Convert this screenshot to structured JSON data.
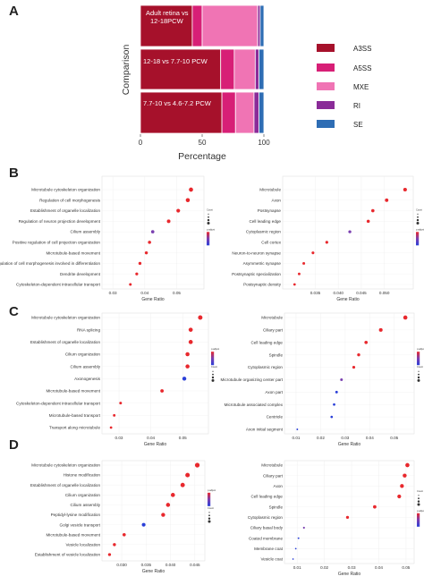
{
  "panel_letters": {
    "a": "A",
    "b": "B",
    "c": "C",
    "d": "D"
  },
  "legend_labels": [
    "A3SS",
    "A5SS",
    "MXE",
    "RI",
    "SE"
  ],
  "colors": {
    "A3SS": "#a6112b",
    "A5SS": "#d71f76",
    "MXE": "#f074b4",
    "RI": "#8a2b98",
    "SE": "#2e6db4",
    "dot_high": "#e8282d",
    "dot_mid": "#7a3fb0",
    "dot_low": "#2a3fd8",
    "grid": "#ececec",
    "frame": "#dddddd"
  },
  "chart_data": [
    {
      "panel": "A",
      "type": "bar",
      "orientation": "horizontal",
      "stacked": true,
      "categories": [
        "Adult retina vs 12-18PCW",
        "12-18 vs 7.7-10 PCW",
        "7.7-10 vs 4.6-7.2 PCW"
      ],
      "series": [
        {
          "name": "A3SS",
          "values": [
            42,
            65,
            66
          ]
        },
        {
          "name": "A5SS",
          "values": [
            8,
            11,
            11
          ]
        },
        {
          "name": "MXE",
          "values": [
            45,
            17,
            15
          ]
        },
        {
          "name": "RI",
          "values": [
            2,
            3,
            4
          ]
        },
        {
          "name": "SE",
          "values": [
            3,
            4,
            4
          ]
        }
      ],
      "xlabel": "Percentage",
      "ylabel": "Comparison",
      "xlim": [
        0,
        100
      ],
      "xticks": [
        "0",
        "50",
        "100"
      ],
      "legend": "right"
    },
    {
      "panel": "B-left",
      "type": "scatter",
      "categories": [
        "Microtubule cytoskeleton organization",
        "Regulation of cell morphogenesis",
        "Establishment of organelle localization",
        "Regulation of neuron projection development",
        "Cilium assembly",
        "Positive regulation of cell projection organization",
        "Microtubule-based movement",
        "Regulation of cell morphogenesis involved in differentiation",
        "Dendrite development",
        "Cytoskeleton-dependent intracellular transport"
      ],
      "x": [
        0.0545,
        0.0535,
        0.0505,
        0.0475,
        0.0425,
        0.0415,
        0.0405,
        0.0385,
        0.0375,
        0.0355
      ],
      "p_adjust": [
        0.05,
        0.05,
        0.05,
        0.05,
        0.5,
        0.05,
        0.05,
        0.05,
        0.05,
        0.05
      ],
      "count": [
        70,
        68,
        62,
        58,
        52,
        50,
        48,
        46,
        44,
        40
      ],
      "xticks": [
        "0.03",
        "0.04",
        "0.05"
      ],
      "xlim": [
        0.028,
        0.058
      ],
      "xlabel": "Gene Ratio",
      "legend_titles": [
        "Count",
        "p.adjust"
      ]
    },
    {
      "panel": "B-right",
      "type": "scatter",
      "categories": [
        "Microtubule",
        "Axon",
        "Postsynapse",
        "Cell leading edge",
        "Cytoplasmic region",
        "Cell cortex",
        "Neuron-to-neuron synapse",
        "Asymmetric synapse",
        "Postsynaptic specialization",
        "Postsynaptic density"
      ],
      "x": [
        0.0545,
        0.0505,
        0.0475,
        0.0465,
        0.0425,
        0.0375,
        0.0345,
        0.0325,
        0.0315,
        0.0305
      ],
      "p_adjust": [
        0.05,
        0.05,
        0.05,
        0.05,
        0.6,
        0.05,
        0.05,
        0.05,
        0.05,
        0.05
      ],
      "count": [
        60,
        56,
        52,
        50,
        46,
        44,
        42,
        40,
        38,
        36
      ],
      "xticks": [
        "0.035",
        "0.040",
        "0.045",
        "0.050"
      ],
      "xlim": [
        0.0285,
        0.0555
      ],
      "xlabel": "Gene Ratio",
      "legend_titles": [
        "Count",
        "p.adjust"
      ]
    },
    {
      "panel": "C-left",
      "type": "scatter",
      "categories": [
        "Microtubule cytoskeleton organization",
        "RNA splicing",
        "Establishment of organelle localization",
        "Cilium organization",
        "Cilium assembly",
        "Axonogenesis",
        "Microtubule-based movement",
        "Cytoskeleton-dependent intracellular transport",
        "Microtubule-based transport",
        "Transport along microtubule"
      ],
      "x": [
        0.0555,
        0.0525,
        0.0525,
        0.0515,
        0.0515,
        0.0505,
        0.0435,
        0.0305,
        0.0285,
        0.0275
      ],
      "p_adjust": [
        0.05,
        0.1,
        0.05,
        0.05,
        0.05,
        0.9,
        0.05,
        0.05,
        0.05,
        0.05
      ],
      "count": [
        75,
        70,
        70,
        68,
        68,
        66,
        55,
        40,
        38,
        36
      ],
      "xticks": [
        "0.03",
        "0.04",
        "0.05"
      ],
      "xlim": [
        0.0255,
        0.0575
      ],
      "xlabel": "Gene Ratio",
      "legend_titles": [
        "p.adjust",
        "Count"
      ]
    },
    {
      "panel": "C-right",
      "type": "scatter",
      "categories": [
        "Microtubule",
        "Ciliary part",
        "Cell leading edge",
        "Spindle",
        "Cytoplasmic region",
        "Microtubule organizing center part",
        "Axon part",
        "Microtubule associated complex",
        "Centriole",
        "Axon initial segment"
      ],
      "x": [
        0.0545,
        0.0445,
        0.0385,
        0.0355,
        0.0335,
        0.0285,
        0.0265,
        0.0255,
        0.0245,
        0.0105
      ],
      "p_adjust": [
        0.05,
        0.05,
        0.2,
        0.2,
        0.3,
        0.6,
        0.8,
        0.8,
        0.9,
        0.9
      ],
      "count": [
        70,
        60,
        52,
        48,
        44,
        40,
        38,
        36,
        34,
        20
      ],
      "xticks": [
        "0.01",
        "0.02",
        "0.03",
        "0.04",
        "0.05"
      ],
      "xlim": [
        0.006,
        0.057
      ],
      "xlabel": "Gene Ratio",
      "legend_titles": [
        "p.adjust",
        "Count"
      ]
    },
    {
      "panel": "D-left",
      "type": "scatter",
      "categories": [
        "Microtubule cytoskeleton organization",
        "Histone modification",
        "Establishment of organelle localization",
        "Cilium organization",
        "Cilium assembly",
        "Peptidyl-lysine modification",
        "Golgi vesicle transport",
        "Microtubule-based movement",
        "Vesicle localization",
        "Establishment of vesicle localization"
      ],
      "x": [
        0.0455,
        0.0435,
        0.0425,
        0.0405,
        0.0395,
        0.0385,
        0.0345,
        0.0305,
        0.0285,
        0.0275
      ],
      "p_adjust": [
        0.05,
        0.05,
        0.05,
        0.05,
        0.05,
        0.05,
        0.9,
        0.05,
        0.05,
        0.05
      ],
      "count": [
        80,
        76,
        74,
        70,
        68,
        66,
        60,
        52,
        48,
        46
      ],
      "xticks": [
        "0.030",
        "0.035",
        "0.040",
        "0.045"
      ],
      "xlim": [
        0.0265,
        0.0465
      ],
      "xlabel": "Gene Ratio",
      "legend_titles": [
        "p.adjust",
        "Count"
      ]
    },
    {
      "panel": "D-right",
      "type": "scatter",
      "categories": [
        "Microtubule",
        "Ciliary part",
        "Axon",
        "Cell leading edge",
        "Spindle",
        "Cytoplasmic region",
        "Ciliary basal body",
        "Coated membrane",
        "Membrane coat",
        "Vesicle coat"
      ],
      "x": [
        0.0505,
        0.0495,
        0.0485,
        0.0475,
        0.0385,
        0.0285,
        0.0125,
        0.0105,
        0.0095,
        0.0085
      ],
      "p_adjust": [
        0.05,
        0.05,
        0.05,
        0.05,
        0.05,
        0.2,
        0.7,
        0.9,
        0.9,
        0.9
      ],
      "count": [
        70,
        66,
        64,
        62,
        55,
        45,
        25,
        20,
        18,
        16
      ],
      "xticks": [
        "0.01",
        "0.02",
        "0.03",
        "0.04",
        "0.05"
      ],
      "xlim": [
        0.006,
        0.052
      ],
      "xlabel": "Gene Ratio",
      "legend_titles": [
        "Count",
        "p.adjust"
      ]
    }
  ]
}
